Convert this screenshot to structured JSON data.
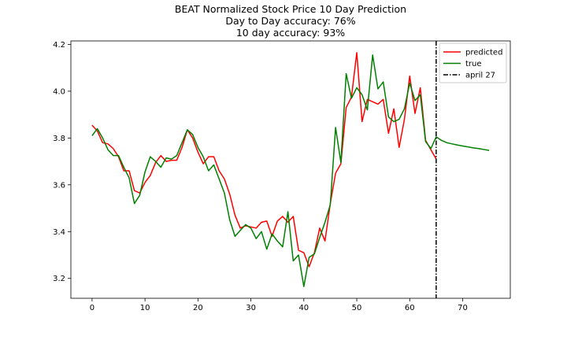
{
  "chart_data": {
    "type": "line",
    "title": "BEAT Normalized Stock Price 10 Day Prediction",
    "subtitle_lines": [
      "Day to Day accuracy: 76%",
      "10 day accuracy: 93%"
    ],
    "xlabel": "",
    "ylabel": "",
    "xlim": [
      -4,
      79
    ],
    "ylim": [
      3.115,
      4.215
    ],
    "x_ticks": [
      0,
      10,
      20,
      30,
      40,
      50,
      60,
      70
    ],
    "y_ticks": [
      3.2,
      3.4,
      3.6,
      3.8,
      4.0,
      4.2
    ],
    "y_tick_labels": [
      "3.2",
      "3.4",
      "3.6",
      "3.8",
      "4.0",
      "4.2"
    ],
    "grid": false,
    "legend_position": "top-right",
    "series": [
      {
        "name": "predicted",
        "color": "#ff0000",
        "x": [
          0,
          1,
          2,
          3,
          4,
          5,
          6,
          7,
          8,
          9,
          10,
          11,
          12,
          13,
          14,
          15,
          16,
          17,
          18,
          19,
          20,
          21,
          22,
          23,
          24,
          25,
          26,
          27,
          28,
          29,
          30,
          31,
          32,
          33,
          34,
          35,
          36,
          37,
          38,
          39,
          40,
          41,
          42,
          43,
          44,
          45,
          46,
          47,
          48,
          49,
          50,
          51,
          52,
          53,
          54,
          55,
          56,
          57,
          58,
          59,
          60,
          61,
          62,
          63,
          64,
          65
        ],
        "values": [
          3.855,
          3.83,
          3.78,
          3.775,
          3.755,
          3.72,
          3.66,
          3.66,
          3.575,
          3.565,
          3.61,
          3.64,
          3.695,
          3.725,
          3.7,
          3.705,
          3.705,
          3.76,
          3.835,
          3.8,
          3.74,
          3.69,
          3.72,
          3.72,
          3.66,
          3.625,
          3.56,
          3.47,
          3.415,
          3.425,
          3.42,
          3.415,
          3.44,
          3.445,
          3.38,
          3.445,
          3.465,
          3.44,
          3.465,
          3.32,
          3.31,
          3.25,
          3.31,
          3.415,
          3.36,
          3.52,
          3.65,
          3.69,
          3.93,
          3.975,
          4.165,
          3.87,
          3.965,
          3.955,
          3.945,
          3.965,
          3.82,
          3.925,
          3.76,
          3.88,
          4.065,
          3.905,
          4.015,
          3.79,
          3.75,
          3.71
        ]
      },
      {
        "name": "true",
        "color": "#008000",
        "x": [
          0,
          1,
          2,
          3,
          4,
          5,
          6,
          7,
          8,
          9,
          10,
          11,
          12,
          13,
          14,
          15,
          16,
          17,
          18,
          19,
          20,
          21,
          22,
          23,
          24,
          25,
          26,
          27,
          28,
          29,
          30,
          31,
          32,
          33,
          34,
          35,
          36,
          37,
          38,
          39,
          40,
          41,
          42,
          43,
          44,
          45,
          46,
          47,
          48,
          49,
          50,
          51,
          52,
          53,
          54,
          55,
          56,
          57,
          58,
          59,
          60,
          61,
          62,
          63,
          64,
          65,
          66,
          67,
          68,
          69,
          70,
          71,
          72,
          73,
          74,
          75
        ],
        "values": [
          3.81,
          3.84,
          3.8,
          3.75,
          3.725,
          3.725,
          3.675,
          3.63,
          3.52,
          3.555,
          3.655,
          3.72,
          3.7,
          3.675,
          3.715,
          3.71,
          3.725,
          3.78,
          3.835,
          3.815,
          3.76,
          3.72,
          3.66,
          3.685,
          3.625,
          3.565,
          3.45,
          3.38,
          3.405,
          3.43,
          3.415,
          3.37,
          3.4,
          3.325,
          3.39,
          3.36,
          3.335,
          3.485,
          3.275,
          3.3,
          3.165,
          3.29,
          3.305,
          3.375,
          3.44,
          3.515,
          3.845,
          3.695,
          4.075,
          3.97,
          4.015,
          3.985,
          3.92,
          4.155,
          4.01,
          4.04,
          3.89,
          3.87,
          3.88,
          3.925,
          4.035,
          3.96,
          3.985,
          3.785,
          3.755,
          3.805,
          3.79,
          3.78,
          3.775,
          3.77,
          3.766,
          3.762,
          3.758,
          3.755,
          3.751,
          3.747
        ]
      }
    ],
    "vline": {
      "name": "april 27",
      "x": 65,
      "color": "#000000",
      "style": "dashdot"
    }
  }
}
